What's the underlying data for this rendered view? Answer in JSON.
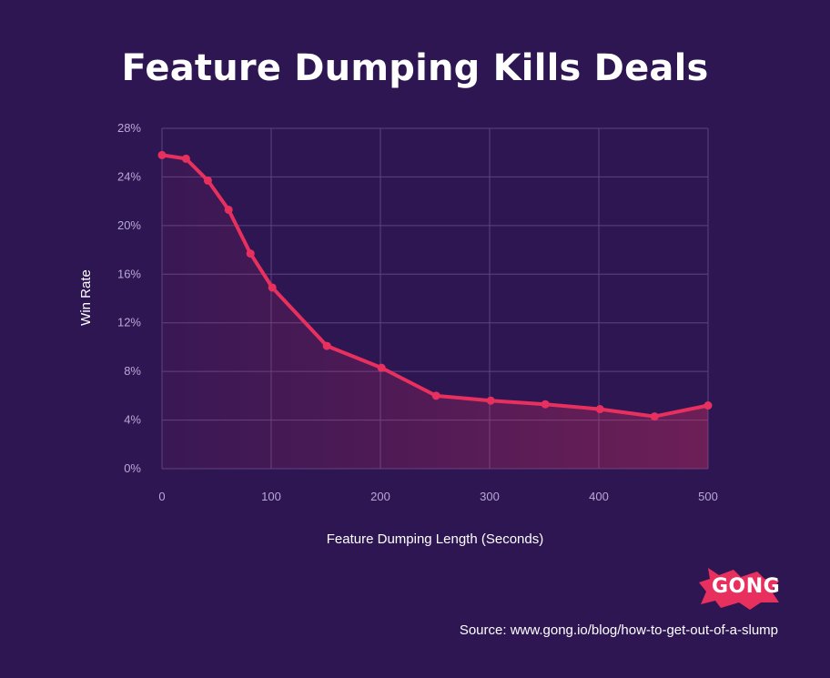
{
  "title": "Feature Dumping Kills Deals",
  "brand": {
    "name": "GONG",
    "color": "#e8305f"
  },
  "source_text": "Source: www.gong.io/blog/how-to-get-out-of-a-slump",
  "colors": {
    "background": "#2e1653",
    "line": "#e8305f",
    "grid": "#5a4480"
  },
  "chart_data": {
    "type": "area",
    "title": "Feature Dumping Kills Deals",
    "xlabel": "Feature Dumping Length (Seconds)",
    "ylabel": "Win Rate",
    "xlim": [
      0,
      500
    ],
    "ylim": [
      0,
      28
    ],
    "x_ticks": [
      "0",
      "100",
      "200",
      "300",
      "400",
      "500"
    ],
    "y_ticks": [
      "0%",
      "4%",
      "8%",
      "12%",
      "16%",
      "20%",
      "24%",
      "28%"
    ],
    "grid": true,
    "legend": "none",
    "series": [
      {
        "x": [
          0,
          22,
          42,
          61,
          81,
          101,
          151,
          201,
          251,
          301,
          351,
          401,
          451,
          500
        ],
        "y": [
          25.8,
          25.5,
          23.7,
          21.3,
          17.7,
          14.9,
          10.1,
          8.3,
          6.0,
          5.6,
          5.3,
          4.9,
          4.3,
          5.2
        ]
      }
    ]
  }
}
